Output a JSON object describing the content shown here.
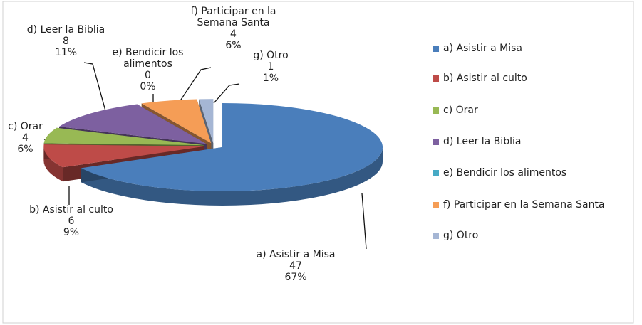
{
  "chart_data": {
    "type": "pie",
    "categories": [
      "a) Asistir a Misa",
      "b) Asistir al culto",
      "c) Orar",
      "d) Leer la Biblia",
      "e) Bendicir los alimentos",
      "f) Participar en la Semana Santa",
      "g) Otro"
    ],
    "values": [
      47,
      6,
      4,
      8,
      0,
      4,
      1
    ],
    "percent_labels": [
      "67%",
      "9%",
      "6%",
      "11%",
      "0%",
      "6%",
      "1%"
    ],
    "colors": [
      "#4a7ebb",
      "#be4b48",
      "#98b954",
      "#7d60a0",
      "#46aac5",
      "#f59d56",
      "#a5b6d4"
    ],
    "legend": "right"
  }
}
